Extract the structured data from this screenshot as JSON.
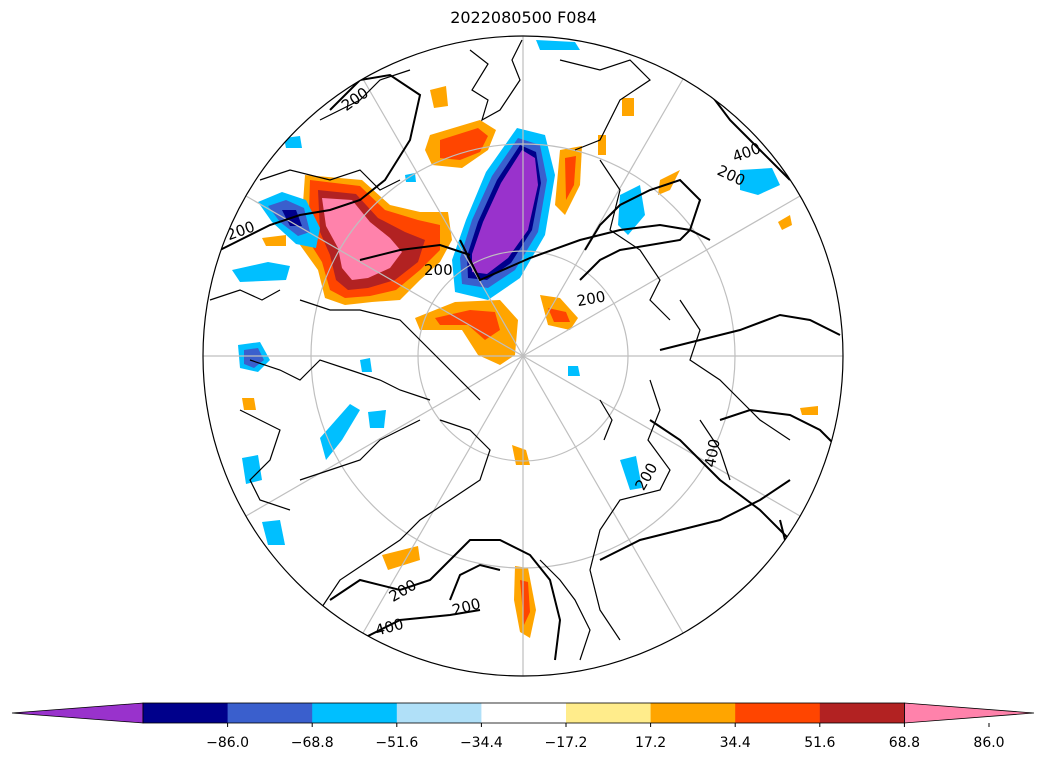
{
  "title": "2022080500 F084",
  "colors": {
    "ocean": "#ffffff",
    "coastline": "#000000",
    "graticule": "#bfbfbf",
    "contour": "#000000"
  },
  "contour_labels": [
    "200",
    "200",
    "200",
    "200",
    "400",
    "200",
    "200",
    "400",
    "200",
    "400",
    "200",
    "200"
  ],
  "colorbar": {
    "ticks": [
      "−86.0",
      "−68.8",
      "−51.6",
      "−34.4",
      "−17.2",
      "17.2",
      "34.4",
      "51.6",
      "68.8",
      "86.0"
    ],
    "colors": [
      "#9932cc",
      "#00008b",
      "#3a5fcd",
      "#00bfff",
      "#b0e0f8",
      "#ffffff",
      "#ffec8b",
      "#ffa500",
      "#ff4500",
      "#b22222",
      "#ff82ab"
    ],
    "extend": "both"
  }
}
